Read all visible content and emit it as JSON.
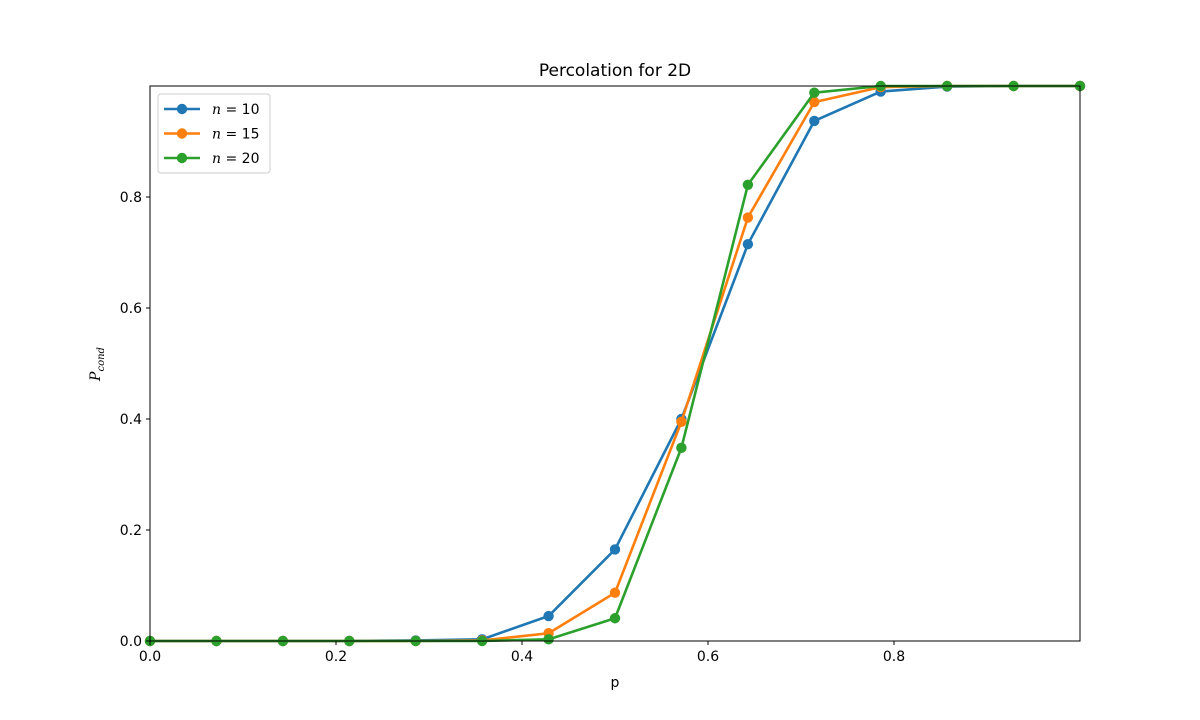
{
  "chart_data": {
    "type": "line",
    "title": "Percolation for 2D",
    "xlabel": "p",
    "ylabel_main": "P",
    "ylabel_sub": "cond",
    "xlim": [
      0,
      1
    ],
    "ylim": [
      0,
      1
    ],
    "x_ticks": [
      0.0,
      0.2,
      0.4,
      0.6,
      0.8
    ],
    "x_tick_labels": [
      "0.0",
      "0.2",
      "0.4",
      "0.6",
      "0.8"
    ],
    "y_ticks": [
      0.0,
      0.2,
      0.4,
      0.6,
      0.8
    ],
    "y_tick_labels": [
      "0.0",
      "0.2",
      "0.4",
      "0.6",
      "0.8"
    ],
    "grid": false,
    "legend_position": "top-left",
    "x": [
      0.0,
      0.0714,
      0.1429,
      0.2143,
      0.2857,
      0.3571,
      0.4286,
      0.5,
      0.5714,
      0.6429,
      0.7143,
      0.7857,
      0.8571,
      0.9286,
      1.0
    ],
    "series": [
      {
        "legend_var": "n",
        "legend_value": "10",
        "color": "#1f77b4",
        "values": [
          0.0,
          0.0,
          0.0,
          0.0,
          0.001,
          0.003,
          0.045,
          0.165,
          0.4,
          0.715,
          0.937,
          0.99,
          0.999,
          1.0,
          1.0
        ]
      },
      {
        "legend_var": "n",
        "legend_value": "15",
        "color": "#ff7f0e",
        "values": [
          0.0,
          0.0,
          0.0,
          0.0,
          0.0,
          0.001,
          0.014,
          0.087,
          0.395,
          0.763,
          0.971,
          0.998,
          1.0,
          1.0,
          1.0
        ]
      },
      {
        "legend_var": "n",
        "legend_value": "20",
        "color": "#2ca02c",
        "values": [
          0.0,
          0.0,
          0.0,
          0.0,
          0.0,
          0.0,
          0.003,
          0.041,
          0.348,
          0.822,
          0.988,
          1.0,
          1.0,
          1.0,
          1.0
        ]
      }
    ]
  }
}
